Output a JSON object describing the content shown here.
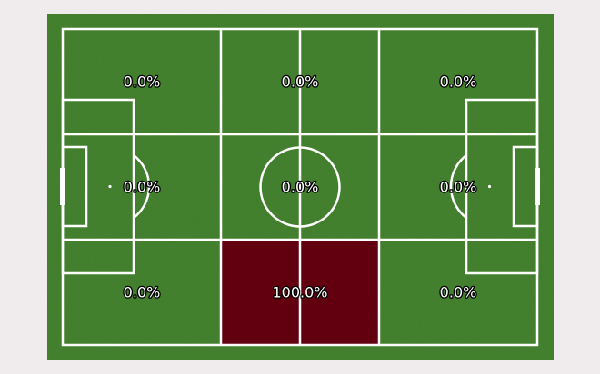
{
  "chart_data": {
    "type": "heatmap",
    "title": "",
    "grid": {
      "rows": 3,
      "cols": 3
    },
    "row_order": [
      "top",
      "middle",
      "bottom"
    ],
    "col_order": [
      "left",
      "center",
      "right"
    ],
    "values": [
      [
        0.0,
        0.0,
        0.0
      ],
      [
        0.0,
        0.0,
        0.0
      ],
      [
        0.0,
        100.0,
        0.0
      ]
    ],
    "labels": [
      [
        "0.0%",
        "0.0%",
        "0.0%"
      ],
      [
        "0.0%",
        "0.0%",
        "0.0%"
      ],
      [
        "0.0%",
        "100.0%",
        "0.0%"
      ]
    ],
    "value_range": [
      0,
      100
    ],
    "unit": "%"
  },
  "colors": {
    "background": "#f0ecee",
    "pitch": "#468530",
    "lines": "#ffffff",
    "zone_max": "#630010",
    "label_fill": "#ffffff",
    "label_outline": "#000000"
  }
}
